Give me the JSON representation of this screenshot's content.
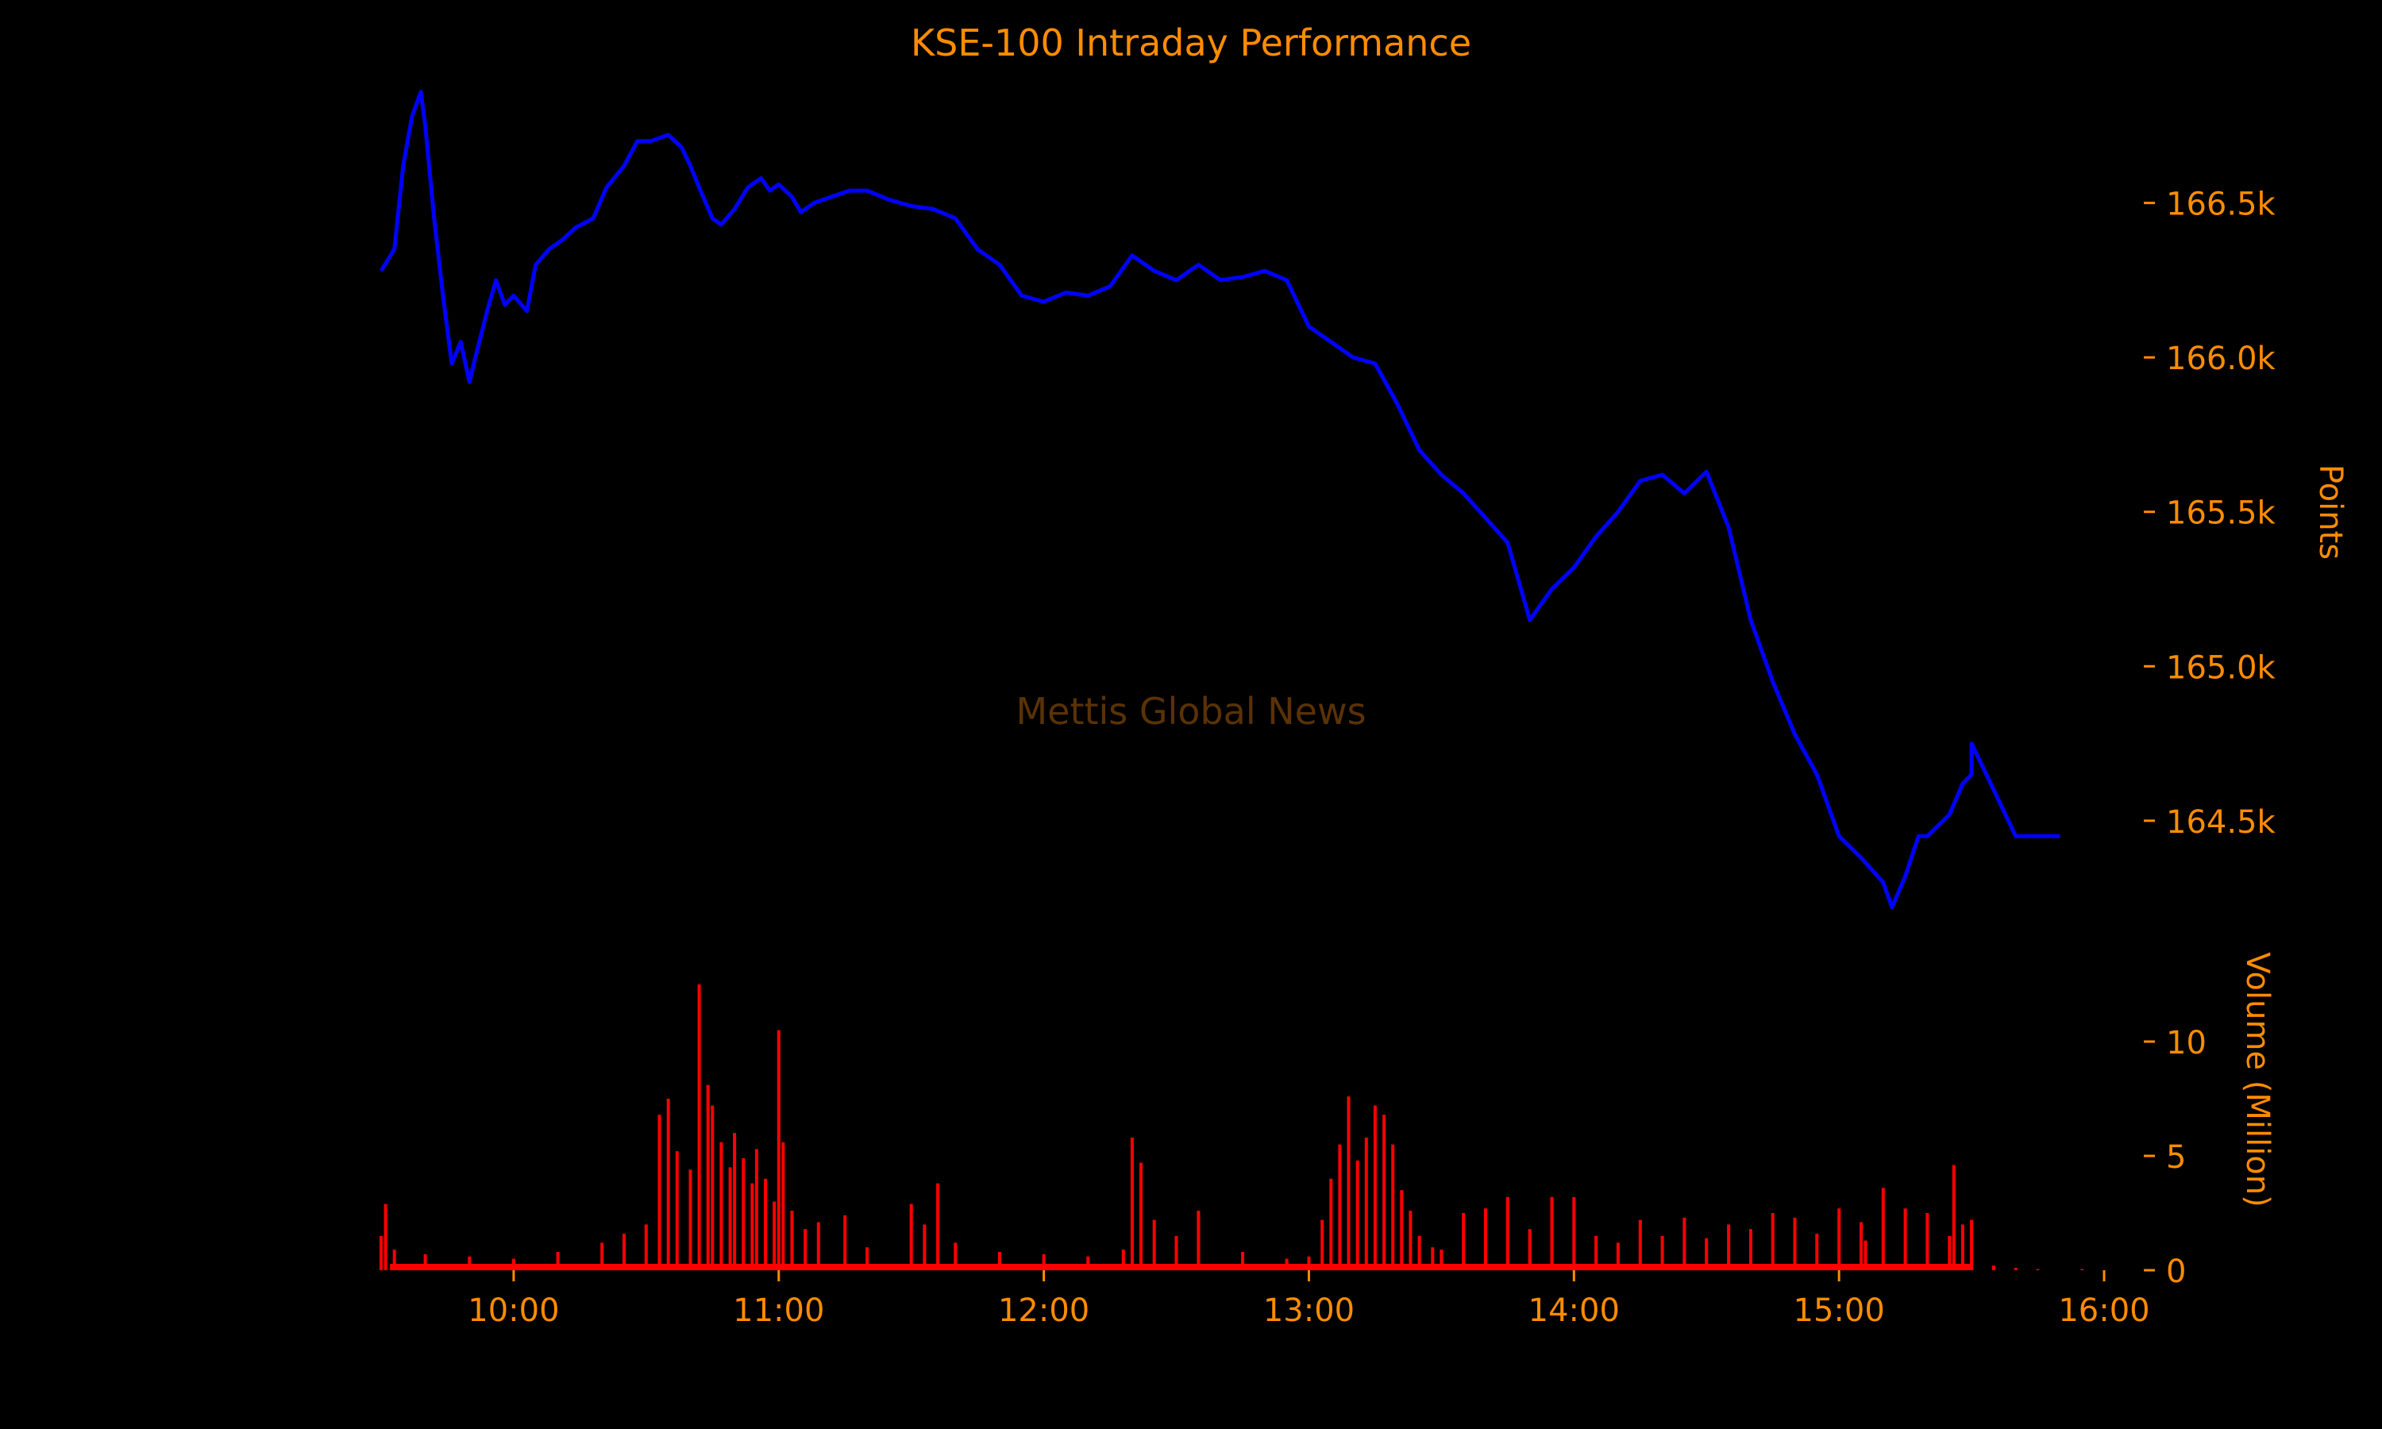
{
  "colors": {
    "background": "#000000",
    "text": "#ff8c00",
    "price_line": "#0000ff",
    "volume_bars": "#ff0000",
    "watermark": "#5a3206"
  },
  "chart_data": [
    {
      "type": "line",
      "title": "KSE-100 Intraday Performance",
      "ylabel": "Points",
      "ylim": [
        164150,
        166900
      ],
      "yticks": [
        164500,
        165000,
        165500,
        166000,
        166500
      ],
      "ytick_labels": [
        "164.5k",
        "165.0k",
        "165.5k",
        "166.0k",
        "166.5k"
      ],
      "xlim": [
        "09:30",
        "16:00"
      ],
      "grid": false,
      "y_axis_side": "right",
      "watermark": "Mettis Global News",
      "series": [
        {
          "x": [
            "09:30",
            "09:33",
            "09:35",
            "09:37",
            "09:39",
            "09:40",
            "09:42",
            "09:44",
            "09:46",
            "09:48",
            "09:50",
            "09:51",
            "09:54",
            "09:56",
            "09:58",
            "10:00",
            "10:03",
            "10:05",
            "10:08",
            "10:11",
            "10:14",
            "10:18",
            "10:21",
            "10:25",
            "10:28",
            "10:31",
            "10:35",
            "10:38",
            "10:40",
            "10:42",
            "10:45",
            "10:47",
            "10:50",
            "10:53",
            "10:56",
            "10:58",
            "11:00",
            "11:03",
            "11:05",
            "11:08",
            "11:12",
            "11:16",
            "11:20",
            "11:25",
            "11:30",
            "11:35",
            "11:40",
            "11:45",
            "11:50",
            "11:55",
            "12:00",
            "12:05",
            "12:10",
            "12:15",
            "12:20",
            "12:25",
            "12:30",
            "12:35",
            "12:40",
            "12:45",
            "12:50",
            "12:55",
            "13:00",
            "13:05",
            "13:10",
            "13:15",
            "13:20",
            "13:25",
            "13:30",
            "13:35",
            "13:40",
            "13:45",
            "13:50",
            "13:55",
            "14:00",
            "14:05",
            "14:10",
            "14:15",
            "14:20",
            "14:25",
            "14:30",
            "14:35",
            "14:40",
            "14:45",
            "14:50",
            "14:55",
            "15:00",
            "15:05",
            "15:10",
            "15:12",
            "15:15",
            "15:18",
            "15:20",
            "15:25",
            "15:28",
            "15:30",
            "15:30",
            "15:40",
            "15:50"
          ],
          "y": [
            166280,
            166350,
            166620,
            166780,
            166860,
            166750,
            166450,
            166200,
            165980,
            166050,
            165920,
            165980,
            166150,
            166250,
            166170,
            166200,
            166150,
            166300,
            166350,
            166380,
            166420,
            166450,
            166550,
            166620,
            166700,
            166700,
            166720,
            166680,
            166620,
            166550,
            166450,
            166430,
            166480,
            166550,
            166580,
            166540,
            166560,
            166520,
            166470,
            166500,
            166520,
            166540,
            166540,
            166510,
            166490,
            166480,
            166450,
            166350,
            166300,
            166200,
            166180,
            166210,
            166200,
            166230,
            166330,
            166280,
            166250,
            166300,
            166250,
            166260,
            166280,
            166250,
            166100,
            166050,
            166000,
            165980,
            165850,
            165700,
            165620,
            165560,
            165480,
            165400,
            165150,
            165250,
            165320,
            165420,
            165500,
            165600,
            165620,
            165560,
            165630,
            165450,
            165150,
            164950,
            164780,
            164650,
            164450,
            164380,
            164300,
            164220,
            164320,
            164450,
            164450,
            164520,
            164620,
            164650,
            164750,
            164450,
            164450
          ]
        }
      ]
    },
    {
      "type": "bar",
      "ylabel": "Volume (Million)",
      "ylim": [
        0,
        12.5
      ],
      "yticks": [
        0,
        5,
        10
      ],
      "ytick_labels": [
        "0",
        "5",
        "10"
      ],
      "xlim": [
        "09:30",
        "16:00"
      ],
      "xticks": [
        "10:00",
        "11:00",
        "12:00",
        "13:00",
        "14:00",
        "15:00",
        "16:00"
      ],
      "y_axis_side": "right",
      "series": [
        {
          "x": [
            "09:30",
            "09:31",
            "09:33",
            "09:40",
            "09:50",
            "10:00",
            "10:10",
            "10:20",
            "10:25",
            "10:30",
            "10:33",
            "10:35",
            "10:37",
            "10:40",
            "10:42",
            "10:44",
            "10:45",
            "10:47",
            "10:49",
            "10:50",
            "10:52",
            "10:54",
            "10:55",
            "10:57",
            "10:59",
            "11:00",
            "11:01",
            "11:03",
            "11:06",
            "11:09",
            "11:15",
            "11:20",
            "11:30",
            "11:33",
            "11:36",
            "11:40",
            "11:50",
            "12:00",
            "12:10",
            "12:18",
            "12:20",
            "12:22",
            "12:25",
            "12:30",
            "12:35",
            "12:45",
            "12:55",
            "13:00",
            "13:03",
            "13:05",
            "13:07",
            "13:09",
            "13:11",
            "13:13",
            "13:15",
            "13:17",
            "13:19",
            "13:21",
            "13:23",
            "13:25",
            "13:28",
            "13:30",
            "13:35",
            "13:40",
            "13:45",
            "13:50",
            "13:55",
            "14:00",
            "14:05",
            "14:10",
            "14:15",
            "14:20",
            "14:25",
            "14:30",
            "14:35",
            "14:40",
            "14:45",
            "14:50",
            "14:55",
            "15:00",
            "15:05",
            "15:06",
            "15:10",
            "15:15",
            "15:20",
            "15:25",
            "15:26",
            "15:28",
            "15:30",
            "15:35",
            "15:40",
            "15:45",
            "15:55"
          ],
          "y": [
            1.5,
            2.9,
            0.9,
            0.7,
            0.6,
            0.5,
            0.8,
            1.2,
            1.6,
            2.0,
            6.8,
            7.5,
            5.2,
            4.4,
            12.5,
            8.1,
            7.2,
            5.6,
            4.5,
            6.0,
            4.9,
            3.8,
            5.3,
            4.0,
            3.0,
            10.5,
            5.6,
            2.6,
            1.8,
            2.1,
            2.4,
            1.0,
            2.9,
            2.0,
            3.8,
            1.2,
            0.8,
            0.7,
            0.6,
            0.9,
            5.8,
            4.7,
            2.2,
            1.5,
            2.6,
            0.8,
            0.5,
            0.6,
            2.2,
            4.0,
            5.5,
            7.6,
            4.8,
            5.8,
            7.2,
            6.8,
            5.5,
            3.5,
            2.6,
            1.5,
            1.0,
            0.9,
            2.5,
            2.7,
            3.2,
            1.8,
            3.2,
            3.2,
            1.5,
            1.2,
            2.2,
            1.5,
            2.3,
            1.4,
            2.0,
            1.8,
            2.5,
            2.3,
            1.6,
            2.7,
            2.1,
            1.3,
            3.6,
            2.7,
            2.5,
            1.5,
            4.6,
            2.0,
            2.2,
            0.2,
            0.1,
            0.05,
            0.05
          ]
        }
      ]
    }
  ]
}
